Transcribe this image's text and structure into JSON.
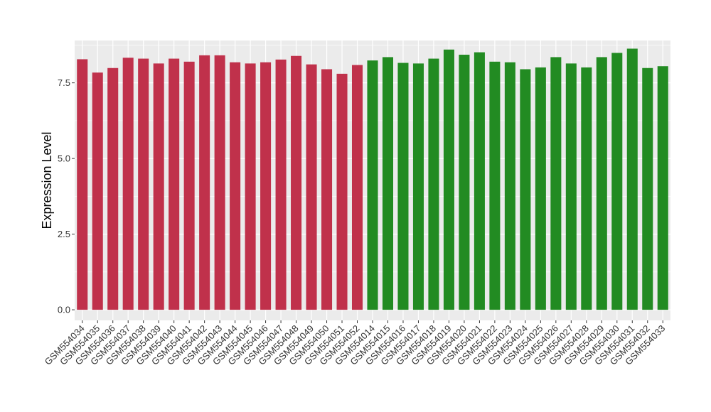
{
  "chart_data": {
    "type": "bar",
    "xlabel": "",
    "ylabel": "Expression Level",
    "ylim": [
      -0.35,
      8.9
    ],
    "yticks": [
      0.0,
      2.5,
      5.0,
      7.5
    ],
    "ytick_labels": [
      "0.0",
      "2.5",
      "5.0",
      "7.5"
    ],
    "grid": true,
    "legend": "none",
    "panel_background": "#EBEBEB",
    "grid_color": "#FFFFFF",
    "categories": [
      "GSM554034",
      "GSM554035",
      "GSM554036",
      "GSM554037",
      "GSM554038",
      "GSM554039",
      "GSM554040",
      "GSM554041",
      "GSM554042",
      "GSM554043",
      "GSM554044",
      "GSM554045",
      "GSM554046",
      "GSM554047",
      "GSM554048",
      "GSM554049",
      "GSM554050",
      "GSM554051",
      "GSM554052",
      "GSM554014",
      "GSM554015",
      "GSM554016",
      "GSM554017",
      "GSM554018",
      "GSM554019",
      "GSM554020",
      "GSM554021",
      "GSM554022",
      "GSM554023",
      "GSM554024",
      "GSM554025",
      "GSM554026",
      "GSM554027",
      "GSM554028",
      "GSM554029",
      "GSM554030",
      "GSM554031",
      "GSM554032",
      "GSM554033"
    ],
    "values": [
      8.28,
      7.84,
      7.99,
      8.33,
      8.3,
      8.14,
      8.3,
      8.2,
      8.41,
      8.41,
      8.18,
      8.14,
      8.18,
      8.27,
      8.39,
      8.11,
      7.95,
      7.8,
      8.09,
      8.24,
      8.35,
      8.16,
      8.14,
      8.3,
      8.6,
      8.43,
      8.51,
      8.2,
      8.18,
      7.95,
      8.01,
      8.35,
      8.14,
      8.01,
      8.35,
      8.49,
      8.63,
      7.99,
      8.05
    ],
    "series": [
      {
        "color": "#C0314B",
        "start": 0,
        "count": 19
      },
      {
        "color": "#228B22",
        "start": 19,
        "count": 20
      }
    ]
  }
}
